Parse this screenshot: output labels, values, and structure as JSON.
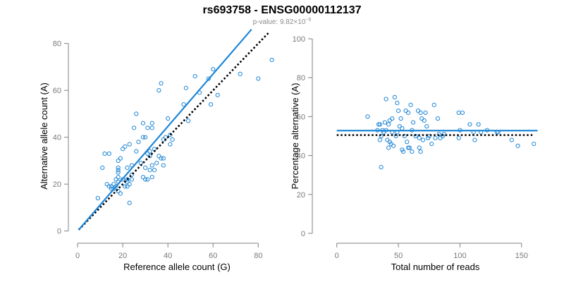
{
  "figure": {
    "title": "rs693758 - ENSG00000112137",
    "subtitle_prefix": "p-value: 9.82×10",
    "subtitle_exponent": "−5"
  },
  "colors": {
    "accent": "#1f86d6",
    "reference": "#000000",
    "axis": "#808080"
  },
  "chart_data": [
    {
      "type": "scatter",
      "xlabel": "Reference allele count (G)",
      "ylabel": "Alternative allele count (A)",
      "xlim": [
        0,
        88
      ],
      "ylim": [
        -1,
        82
      ],
      "xticks": [
        0,
        20,
        40,
        60,
        80
      ],
      "yticks": [
        0,
        20,
        40,
        60,
        80
      ],
      "grid": false,
      "points": [
        [
          9,
          14
        ],
        [
          11,
          27
        ],
        [
          12,
          33
        ],
        [
          13,
          20
        ],
        [
          14,
          33
        ],
        [
          14,
          19
        ],
        [
          15,
          19
        ],
        [
          15,
          18
        ],
        [
          16,
          20
        ],
        [
          16,
          18
        ],
        [
          17,
          19
        ],
        [
          17,
          22
        ],
        [
          18,
          25
        ],
        [
          18,
          26
        ],
        [
          18,
          27
        ],
        [
          18,
          23
        ],
        [
          18,
          21
        ],
        [
          18,
          17
        ],
        [
          18,
          30
        ],
        [
          19,
          31
        ],
        [
          19,
          16
        ],
        [
          20,
          22
        ],
        [
          20,
          35
        ],
        [
          21,
          36
        ],
        [
          21,
          19
        ],
        [
          22,
          19
        ],
        [
          22,
          22
        ],
        [
          22,
          27
        ],
        [
          22,
          22
        ],
        [
          22,
          21
        ],
        [
          23,
          20
        ],
        [
          23,
          12
        ],
        [
          23,
          37
        ],
        [
          24,
          24
        ],
        [
          24,
          22
        ],
        [
          24,
          28
        ],
        [
          25,
          44
        ],
        [
          26,
          50
        ],
        [
          26,
          34
        ],
        [
          27,
          38
        ],
        [
          28,
          29
        ],
        [
          29,
          40
        ],
        [
          29,
          46
        ],
        [
          29,
          23
        ],
        [
          30,
          27
        ],
        [
          30,
          40
        ],
        [
          30,
          22
        ],
        [
          31,
          22
        ],
        [
          31,
          33
        ],
        [
          31,
          44
        ],
        [
          32,
          26
        ],
        [
          32,
          32
        ],
        [
          32,
          34
        ],
        [
          33,
          28
        ],
        [
          33,
          46
        ],
        [
          33,
          44
        ],
        [
          33,
          23
        ],
        [
          34,
          35
        ],
        [
          34,
          26
        ],
        [
          35,
          29
        ],
        [
          36,
          32
        ],
        [
          36,
          60
        ],
        [
          37,
          63
        ],
        [
          37,
          31
        ],
        [
          38,
          31
        ],
        [
          38,
          28
        ],
        [
          38,
          39
        ],
        [
          39,
          40
        ],
        [
          40,
          48
        ],
        [
          41,
          41
        ],
        [
          41,
          37
        ],
        [
          42,
          39
        ],
        [
          47,
          54
        ],
        [
          48,
          61
        ],
        [
          49,
          47
        ],
        [
          52,
          66
        ],
        [
          54,
          59
        ],
        [
          58,
          65
        ],
        [
          59,
          54
        ],
        [
          60,
          69
        ],
        [
          62,
          58
        ],
        [
          72,
          67
        ],
        [
          80,
          65
        ],
        [
          86,
          73
        ]
      ],
      "series": [
        {
          "name": "",
          "kind": "fit",
          "x": [
            0.5,
            77
          ],
          "y": [
            0.5,
            86
          ],
          "style": "solid"
        },
        {
          "name": "",
          "kind": "reference",
          "x": [
            0.5,
            85
          ],
          "y": [
            0.5,
            85
          ],
          "style": "dotted"
        }
      ]
    },
    {
      "type": "scatter",
      "xlabel": "Total number of reads",
      "ylabel": "Percentage alternative (A)",
      "xlim": [
        -5,
        165
      ],
      "ylim": [
        0,
        100
      ],
      "xticks": [
        0,
        50,
        100,
        150
      ],
      "yticks": [
        0,
        20,
        40,
        60,
        80,
        100
      ],
      "grid": false,
      "points": [
        [
          25,
          60
        ],
        [
          33,
          53
        ],
        [
          34,
          56
        ],
        [
          35,
          48
        ],
        [
          35,
          56
        ],
        [
          36,
          34
        ],
        [
          36,
          50
        ],
        [
          37,
          53
        ],
        [
          38,
          52
        ],
        [
          39,
          57
        ],
        [
          40,
          69
        ],
        [
          40,
          53
        ],
        [
          41,
          48
        ],
        [
          42,
          56
        ],
        [
          42,
          44
        ],
        [
          43,
          58
        ],
        [
          43,
          47
        ],
        [
          44,
          46
        ],
        [
          45,
          59
        ],
        [
          45,
          52
        ],
        [
          46,
          45
        ],
        [
          47,
          70
        ],
        [
          48,
          50
        ],
        [
          49,
          52
        ],
        [
          49,
          67
        ],
        [
          50,
          63
        ],
        [
          51,
          55
        ],
        [
          52,
          59
        ],
        [
          53,
          54
        ],
        [
          53,
          43
        ],
        [
          54,
          42
        ],
        [
          55,
          50
        ],
        [
          56,
          63
        ],
        [
          57,
          47
        ],
        [
          58,
          62
        ],
        [
          58,
          44
        ],
        [
          59,
          44
        ],
        [
          60,
          66
        ],
        [
          61,
          42
        ],
        [
          61,
          53
        ],
        [
          62,
          57
        ],
        [
          64,
          50
        ],
        [
          66,
          63
        ],
        [
          67,
          44
        ],
        [
          67,
          49
        ],
        [
          68,
          62
        ],
        [
          68,
          42
        ],
        [
          69,
          59
        ],
        [
          70,
          48
        ],
        [
          71,
          58
        ],
        [
          72,
          62
        ],
        [
          73,
          55
        ],
        [
          74,
          49
        ],
        [
          75,
          50
        ],
        [
          77,
          46
        ],
        [
          79,
          66
        ],
        [
          80,
          49
        ],
        [
          82,
          59
        ],
        [
          83,
          51
        ],
        [
          84,
          49
        ],
        [
          86,
          50
        ],
        [
          87,
          51
        ],
        [
          99,
          49
        ],
        [
          99,
          62
        ],
        [
          100,
          53
        ],
        [
          102,
          62
        ],
        [
          108,
          56
        ],
        [
          111,
          52
        ],
        [
          112,
          48
        ],
        [
          115,
          56
        ],
        [
          117,
          52
        ],
        [
          122,
          53
        ],
        [
          130,
          52
        ],
        [
          131,
          52
        ],
        [
          142,
          48
        ],
        [
          147,
          45
        ],
        [
          160,
          46
        ]
      ],
      "series": [
        {
          "name": "",
          "kind": "mean",
          "x": [
            0,
            163
          ],
          "y": [
            52.8,
            52.8
          ],
          "style": "solid"
        },
        {
          "name": "",
          "kind": "reference",
          "x": [
            0,
            160
          ],
          "y": [
            50.5,
            50.5
          ],
          "style": "dotted"
        }
      ]
    }
  ]
}
